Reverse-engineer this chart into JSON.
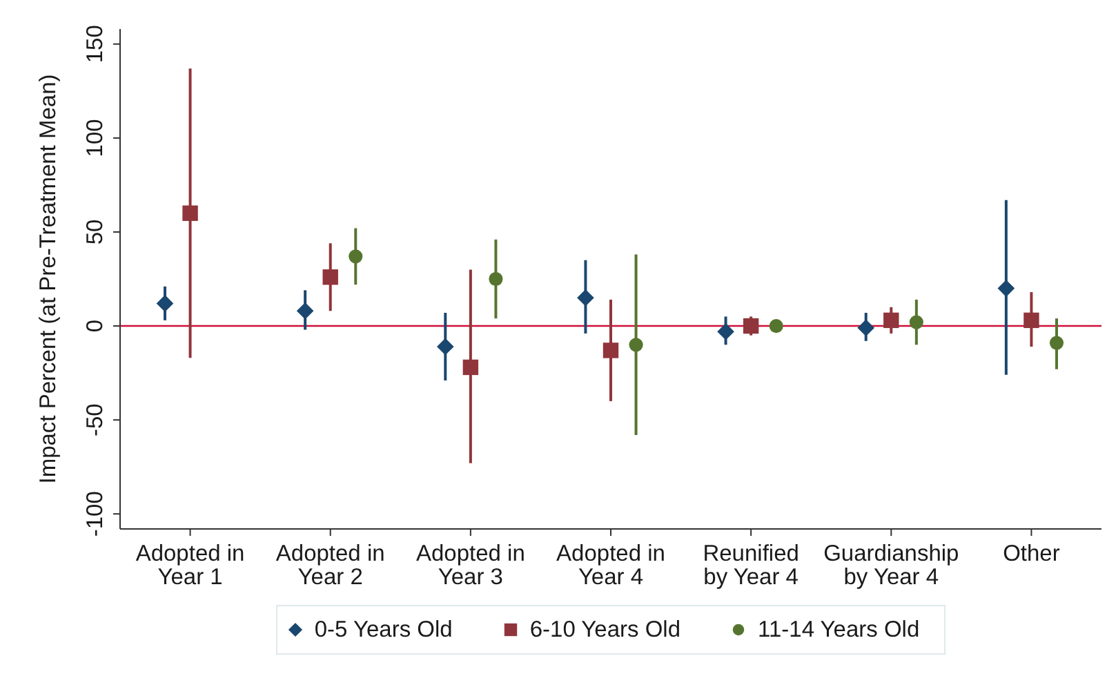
{
  "chart_data": {
    "type": "scatter",
    "ylabel": "Impact Percent (at Pre-Treatment Mean)",
    "categories": [
      "Adopted in Year 1",
      "Adopted in Year 2",
      "Adopted in Year 3",
      "Adopted in Year 4",
      "Reunified by Year 4",
      "Guardianship by Year 4",
      "Other"
    ],
    "ylim": [
      -108,
      158
    ],
    "yticks": [
      -100,
      -50,
      0,
      50,
      100,
      150
    ],
    "legend": "bottom",
    "ref_lines": [
      {
        "axis": "y",
        "value": 0,
        "color": "#d0103a"
      }
    ],
    "series": [
      {
        "name": "0-5 Years Old",
        "color": "#1a476f",
        "marker": "diamond",
        "values": [
          12,
          8,
          -11,
          15,
          -3,
          -1,
          20
        ],
        "errors": [
          [
            3,
            21
          ],
          [
            -2,
            19
          ],
          [
            -29,
            7
          ],
          [
            -4,
            35
          ],
          [
            -10,
            5
          ],
          [
            -8,
            7
          ],
          [
            -26,
            67
          ]
        ]
      },
      {
        "name": "6-10 Years Old",
        "color": "#90353b",
        "marker": "square",
        "values": [
          60,
          26,
          -22,
          -13,
          0,
          3,
          3
        ],
        "errors": [
          [
            -17,
            137
          ],
          [
            8,
            44
          ],
          [
            -73,
            30
          ],
          [
            -40,
            14
          ],
          [
            -5,
            5
          ],
          [
            -4,
            10
          ],
          [
            -11,
            18
          ]
        ]
      },
      {
        "name": "11-14 Years Old",
        "color": "#55752f",
        "marker": "circle",
        "values": [
          null,
          37,
          25,
          -10,
          0,
          2,
          -9
        ],
        "errors": [
          null,
          [
            22,
            52
          ],
          [
            4,
            46
          ],
          [
            -58,
            38
          ],
          [
            -3,
            3
          ],
          [
            -10,
            14
          ],
          [
            -23,
            4
          ]
        ]
      }
    ]
  }
}
